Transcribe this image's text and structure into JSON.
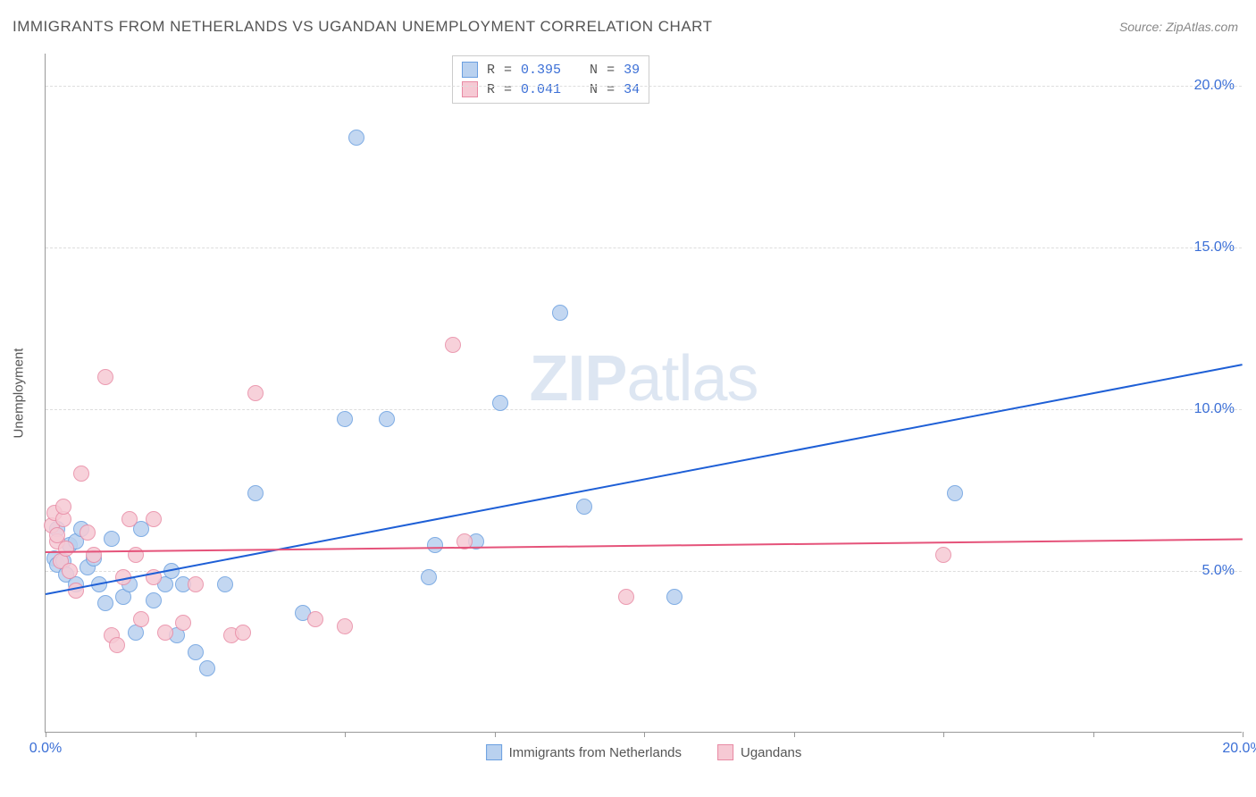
{
  "title": "IMMIGRANTS FROM NETHERLANDS VS UGANDAN UNEMPLOYMENT CORRELATION CHART",
  "source": "Source: ZipAtlas.com",
  "watermark_bold": "ZIP",
  "watermark_light": "atlas",
  "y_axis_label": "Unemployment",
  "chart": {
    "type": "scatter",
    "xlim": [
      0,
      20
    ],
    "ylim": [
      0,
      21
    ],
    "x_ticks": [
      0,
      2.5,
      5,
      7.5,
      10,
      12.5,
      15,
      17.5,
      20
    ],
    "x_tick_labels": {
      "0": "0.0%",
      "20": "20.0%"
    },
    "y_ticks": [
      5,
      10,
      15,
      20
    ],
    "y_tick_labels": {
      "5": "5.0%",
      "10": "10.0%",
      "15": "15.0%",
      "20": "20.0%"
    },
    "background_color": "#ffffff",
    "grid_color": "#dddddd",
    "axis_color": "#999999",
    "marker_radius": 9,
    "marker_stroke_width": 1.5,
    "series": [
      {
        "id": "netherlands",
        "label": "Immigrants from Netherlands",
        "fill": "#b9d1ef",
        "stroke": "#6a9fe0",
        "R": "0.395",
        "N": "39",
        "trend": {
          "x1": 0,
          "y1": 4.3,
          "x2": 20,
          "y2": 11.4,
          "color": "#1e5fd6",
          "width": 2
        },
        "points": [
          [
            0.15,
            5.4
          ],
          [
            0.2,
            5.2
          ],
          [
            0.2,
            6.3
          ],
          [
            0.3,
            5.3
          ],
          [
            0.35,
            4.9
          ],
          [
            0.4,
            5.8
          ],
          [
            0.5,
            5.9
          ],
          [
            0.5,
            4.6
          ],
          [
            0.6,
            6.3
          ],
          [
            0.7,
            5.1
          ],
          [
            0.8,
            5.4
          ],
          [
            0.9,
            4.6
          ],
          [
            1.0,
            4.0
          ],
          [
            1.1,
            6.0
          ],
          [
            1.3,
            4.2
          ],
          [
            1.4,
            4.6
          ],
          [
            1.5,
            3.1
          ],
          [
            1.6,
            6.3
          ],
          [
            1.8,
            4.1
          ],
          [
            2.0,
            4.6
          ],
          [
            2.1,
            5.0
          ],
          [
            2.2,
            3.0
          ],
          [
            2.3,
            4.6
          ],
          [
            2.5,
            2.5
          ],
          [
            2.7,
            2.0
          ],
          [
            3.0,
            4.6
          ],
          [
            3.5,
            7.4
          ],
          [
            4.3,
            3.7
          ],
          [
            5.0,
            9.7
          ],
          [
            5.2,
            18.4
          ],
          [
            5.7,
            9.7
          ],
          [
            6.4,
            4.8
          ],
          [
            6.5,
            5.8
          ],
          [
            7.2,
            5.9
          ],
          [
            7.6,
            10.2
          ],
          [
            8.6,
            13.0
          ],
          [
            9.0,
            7.0
          ],
          [
            10.5,
            4.2
          ],
          [
            15.2,
            7.4
          ]
        ]
      },
      {
        "id": "ugandans",
        "label": "Ugandans",
        "fill": "#f6c9d4",
        "stroke": "#e88aa4",
        "R": "0.041",
        "N": "34",
        "trend": {
          "x1": 0,
          "y1": 5.6,
          "x2": 20,
          "y2": 6.0,
          "color": "#e5537a",
          "width": 2
        },
        "points": [
          [
            0.1,
            6.4
          ],
          [
            0.15,
            6.8
          ],
          [
            0.2,
            5.9
          ],
          [
            0.2,
            6.1
          ],
          [
            0.25,
            5.3
          ],
          [
            0.3,
            6.6
          ],
          [
            0.3,
            7.0
          ],
          [
            0.35,
            5.7
          ],
          [
            0.4,
            5.0
          ],
          [
            0.5,
            4.4
          ],
          [
            0.6,
            8.0
          ],
          [
            0.7,
            6.2
          ],
          [
            0.8,
            5.5
          ],
          [
            1.0,
            11.0
          ],
          [
            1.1,
            3.0
          ],
          [
            1.2,
            2.7
          ],
          [
            1.3,
            4.8
          ],
          [
            1.4,
            6.6
          ],
          [
            1.5,
            5.5
          ],
          [
            1.6,
            3.5
          ],
          [
            1.8,
            4.8
          ],
          [
            1.8,
            6.6
          ],
          [
            2.0,
            3.1
          ],
          [
            2.3,
            3.4
          ],
          [
            2.5,
            4.6
          ],
          [
            3.1,
            3.0
          ],
          [
            3.3,
            3.1
          ],
          [
            3.5,
            10.5
          ],
          [
            4.5,
            3.5
          ],
          [
            5.0,
            3.3
          ],
          [
            6.8,
            12.0
          ],
          [
            7.0,
            5.9
          ],
          [
            9.7,
            4.2
          ],
          [
            15.0,
            5.5
          ]
        ]
      }
    ]
  },
  "legend": {
    "stat_R_label": "R",
    "stat_eq": "=",
    "stat_N_label": "N"
  }
}
